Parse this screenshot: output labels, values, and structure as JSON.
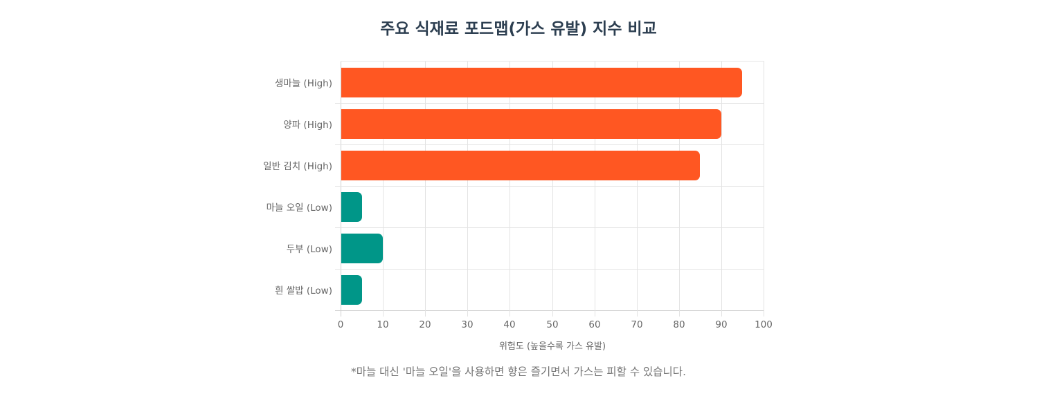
{
  "title": "주요 식재료 포드맵(가스 유발) 지수 비교",
  "note": "*마늘 대신 '마늘 오일'을 사용하면 향은 즐기면서 가스는 피할 수 있습니다.",
  "colors": {
    "high": "#FF5722",
    "low": "#009688",
    "title": "#2c3e50",
    "grid": "#e3e3e3"
  },
  "chart_data": {
    "type": "bar",
    "orientation": "horizontal",
    "title": "주요 식재료 포드맵(가스 유발) 지수 비교",
    "xlabel": "위험도 (높을수록 가스 유발)",
    "ylabel": "",
    "categories": [
      "생마늘 (High)",
      "양파 (High)",
      "일반 김치 (High)",
      "마늘 오일 (Low)",
      "두부 (Low)",
      "흰 쌀밥 (Low)"
    ],
    "values": [
      95,
      90,
      85,
      5,
      10,
      5
    ],
    "bar_colors": [
      "#FF5722",
      "#FF5722",
      "#FF5722",
      "#009688",
      "#009688",
      "#009688"
    ],
    "xlim": [
      0,
      100
    ],
    "xticks": [
      "0",
      "10",
      "20",
      "30",
      "40",
      "50",
      "60",
      "70",
      "80",
      "90",
      "100"
    ],
    "grid": true,
    "legend": "none",
    "annotations": [
      "*마늘 대신 '마늘 오일'을 사용하면 향은 즐기면서 가스는 피할 수 있습니다."
    ]
  }
}
